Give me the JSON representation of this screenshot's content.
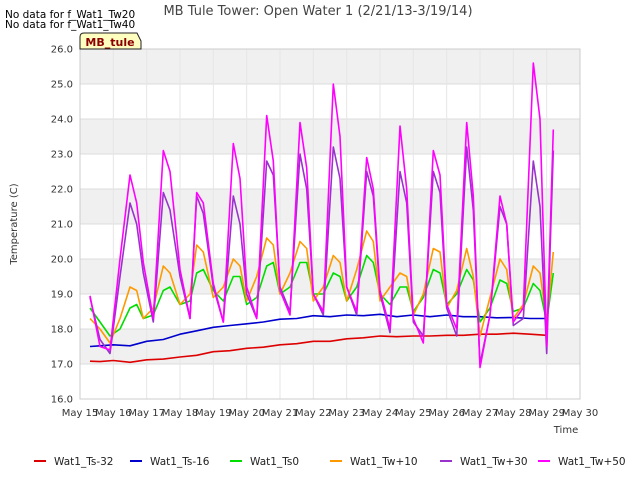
{
  "notes": [
    "No data for f_Wat1_Tw20",
    "No data for f_Wat1_Tw40"
  ],
  "badge": "MB_tule",
  "chart_data": {
    "type": "line",
    "title": "MB Tule Tower: Open Water 1 (2/21/13-3/19/14)",
    "xlabel": "Time",
    "ylabel": "Temperature (C)",
    "xlim": [
      15,
      30
    ],
    "ylim": [
      16.0,
      26.0
    ],
    "x_ticks": [
      15,
      16,
      17,
      18,
      19,
      20,
      21,
      22,
      23,
      24,
      25,
      26,
      27,
      28,
      29,
      30
    ],
    "x_tick_labels": [
      "May 15",
      "May 16",
      "May 17",
      "May 18",
      "May 19",
      "May 20",
      "May 21",
      "May 22",
      "May 23",
      "May 24",
      "May 25",
      "May 26",
      "May 27",
      "May 28",
      "May 29",
      "May 30"
    ],
    "y_ticks": [
      16.0,
      17.0,
      18.0,
      19.0,
      20.0,
      21.0,
      22.0,
      23.0,
      24.0,
      25.0,
      26.0
    ],
    "y_tick_labels": [
      "16.0",
      "17.0",
      "18.0",
      "19.0",
      "20.0",
      "21.0",
      "22.0",
      "23.0",
      "24.0",
      "25.0",
      "26.0"
    ],
    "grid": true,
    "legend_position": "bottom",
    "series": [
      {
        "name": "Wat1_Ts-32",
        "color": "#dd0000",
        "x": [
          15.3,
          15.6,
          16.0,
          16.5,
          17.0,
          17.5,
          18.0,
          18.5,
          19.0,
          19.5,
          20.0,
          20.5,
          21.0,
          21.5,
          22.0,
          22.5,
          23.0,
          23.5,
          24.0,
          24.5,
          25.0,
          25.5,
          26.0,
          26.5,
          27.0,
          27.5,
          28.0,
          28.5,
          29.0
        ],
        "y": [
          17.08,
          17.07,
          17.1,
          17.05,
          17.12,
          17.14,
          17.2,
          17.25,
          17.35,
          17.38,
          17.45,
          17.48,
          17.55,
          17.58,
          17.65,
          17.65,
          17.72,
          17.75,
          17.8,
          17.78,
          17.8,
          17.8,
          17.82,
          17.82,
          17.85,
          17.85,
          17.88,
          17.85,
          17.82
        ]
      },
      {
        "name": "Wat1_Ts-16",
        "color": "#0000cc",
        "x": [
          15.3,
          15.6,
          16.0,
          16.5,
          17.0,
          17.5,
          18.0,
          18.5,
          19.0,
          19.5,
          20.0,
          20.5,
          21.0,
          21.5,
          22.0,
          22.5,
          23.0,
          23.5,
          24.0,
          24.5,
          25.0,
          25.5,
          26.0,
          26.5,
          27.0,
          27.5,
          28.0,
          28.5,
          29.0
        ],
        "y": [
          17.5,
          17.52,
          17.55,
          17.52,
          17.65,
          17.7,
          17.85,
          17.95,
          18.05,
          18.1,
          18.15,
          18.2,
          18.28,
          18.3,
          18.38,
          18.35,
          18.4,
          18.38,
          18.42,
          18.35,
          18.4,
          18.35,
          18.4,
          18.35,
          18.35,
          18.32,
          18.33,
          18.3,
          18.3
        ]
      },
      {
        "name": "Wat1_Ts0",
        "color": "#00dd00",
        "x": [
          15.3,
          15.6,
          15.9,
          16.2,
          16.5,
          16.7,
          16.9,
          17.2,
          17.5,
          17.7,
          18.0,
          18.3,
          18.5,
          18.7,
          19.0,
          19.3,
          19.6,
          19.8,
          20.0,
          20.3,
          20.6,
          20.8,
          21.0,
          21.3,
          21.6,
          21.8,
          22.0,
          22.3,
          22.6,
          22.8,
          23.0,
          23.3,
          23.6,
          23.8,
          24.0,
          24.3,
          24.6,
          24.8,
          25.0,
          25.3,
          25.6,
          25.8,
          26.0,
          26.3,
          26.6,
          26.8,
          27.0,
          27.3,
          27.6,
          27.8,
          28.0,
          28.3,
          28.6,
          28.8,
          29.0,
          29.2
        ],
        "y": [
          18.6,
          18.2,
          17.8,
          18.0,
          18.6,
          18.7,
          18.3,
          18.4,
          19.1,
          19.2,
          18.7,
          18.8,
          19.6,
          19.7,
          19.1,
          18.8,
          19.5,
          19.5,
          18.7,
          18.9,
          19.8,
          19.9,
          19.0,
          19.2,
          19.9,
          19.9,
          19.0,
          19.0,
          19.6,
          19.5,
          18.8,
          19.2,
          20.1,
          19.9,
          19.0,
          18.7,
          19.2,
          19.2,
          18.5,
          18.9,
          19.7,
          19.6,
          18.7,
          19.0,
          19.7,
          19.4,
          18.2,
          18.6,
          19.4,
          19.3,
          18.5,
          18.6,
          19.3,
          19.1,
          18.2,
          19.6
        ]
      },
      {
        "name": "Wat1_Tw+10",
        "color": "#ff9900",
        "x": [
          15.3,
          15.6,
          15.9,
          16.2,
          16.5,
          16.7,
          16.9,
          17.2,
          17.5,
          17.7,
          18.0,
          18.3,
          18.5,
          18.7,
          19.0,
          19.3,
          19.6,
          19.8,
          20.0,
          20.3,
          20.6,
          20.8,
          21.0,
          21.3,
          21.6,
          21.8,
          22.0,
          22.3,
          22.6,
          22.8,
          23.0,
          23.3,
          23.6,
          23.8,
          24.0,
          24.3,
          24.6,
          24.8,
          25.0,
          25.3,
          25.6,
          25.8,
          26.0,
          26.3,
          26.6,
          26.8,
          27.0,
          27.3,
          27.6,
          27.8,
          28.0,
          28.3,
          28.6,
          28.8,
          29.0,
          29.2
        ],
        "y": [
          18.3,
          18.0,
          17.6,
          18.3,
          19.2,
          19.1,
          18.3,
          18.6,
          19.8,
          19.6,
          18.7,
          19.0,
          20.4,
          20.2,
          18.9,
          19.2,
          20.0,
          19.8,
          18.8,
          19.5,
          20.6,
          20.4,
          19.0,
          19.6,
          20.5,
          20.3,
          18.8,
          19.2,
          20.1,
          19.9,
          18.8,
          19.7,
          20.8,
          20.5,
          18.8,
          19.2,
          19.6,
          19.5,
          18.4,
          19.0,
          20.3,
          20.2,
          18.6,
          19.1,
          20.3,
          19.5,
          17.8,
          18.9,
          20.0,
          19.7,
          18.3,
          18.7,
          19.8,
          19.6,
          18.2,
          20.2
        ]
      },
      {
        "name": "Wat1_Tw+30",
        "color": "#9933cc",
        "x": [
          15.3,
          15.6,
          15.9,
          16.2,
          16.5,
          16.7,
          16.9,
          17.2,
          17.5,
          17.7,
          18.0,
          18.3,
          18.5,
          18.7,
          19.0,
          19.3,
          19.6,
          19.8,
          20.0,
          20.3,
          20.6,
          20.8,
          21.0,
          21.3,
          21.6,
          21.8,
          22.0,
          22.3,
          22.6,
          22.8,
          23.0,
          23.3,
          23.6,
          23.8,
          24.0,
          24.3,
          24.6,
          24.8,
          25.0,
          25.3,
          25.6,
          25.8,
          26.0,
          26.3,
          26.6,
          26.8,
          27.0,
          27.3,
          27.6,
          27.8,
          28.0,
          28.3,
          28.6,
          28.8,
          29.0,
          29.2
        ],
        "y": [
          18.9,
          17.7,
          17.3,
          19.5,
          21.6,
          21.0,
          19.6,
          18.2,
          21.9,
          21.4,
          19.5,
          18.3,
          21.8,
          21.3,
          19.2,
          18.2,
          21.8,
          21.0,
          19.0,
          18.3,
          22.8,
          22.4,
          19.2,
          18.5,
          23.0,
          22.0,
          19.0,
          18.4,
          23.2,
          22.3,
          19.2,
          18.4,
          22.5,
          21.8,
          19.0,
          17.9,
          22.5,
          21.6,
          18.2,
          17.8,
          22.5,
          21.9,
          18.6,
          17.8,
          23.2,
          21.4,
          17.0,
          18.4,
          21.5,
          21.0,
          18.1,
          18.3,
          22.8,
          21.5,
          17.3,
          23.1
        ]
      },
      {
        "name": "Wat1_Tw+50",
        "color": "#ff00ff",
        "x": [
          15.3,
          15.6,
          15.9,
          16.2,
          16.5,
          16.7,
          16.9,
          17.2,
          17.5,
          17.7,
          18.0,
          18.3,
          18.5,
          18.7,
          19.0,
          19.3,
          19.6,
          19.8,
          20.0,
          20.3,
          20.6,
          20.8,
          21.0,
          21.3,
          21.6,
          21.8,
          22.0,
          22.3,
          22.6,
          22.8,
          23.0,
          23.3,
          23.6,
          23.8,
          24.0,
          24.3,
          24.6,
          24.8,
          25.0,
          25.3,
          25.6,
          25.8,
          26.0,
          26.3,
          26.6,
          26.8,
          27.0,
          27.3,
          27.6,
          27.8,
          28.0,
          28.3,
          28.6,
          28.8,
          29.0,
          29.2
        ],
        "y": [
          18.95,
          17.5,
          17.4,
          20.0,
          22.4,
          21.6,
          19.9,
          18.3,
          23.1,
          22.5,
          19.7,
          18.3,
          21.9,
          21.6,
          19.3,
          18.2,
          23.3,
          22.3,
          19.2,
          18.3,
          24.1,
          22.8,
          19.1,
          18.4,
          23.9,
          22.6,
          19.0,
          18.5,
          25.0,
          23.5,
          19.2,
          18.5,
          22.9,
          22.0,
          19.1,
          18.0,
          23.8,
          22.0,
          18.3,
          17.6,
          23.1,
          22.4,
          18.7,
          18.0,
          23.9,
          21.8,
          16.9,
          18.4,
          21.8,
          21.0,
          18.2,
          18.6,
          25.6,
          24.0,
          17.5,
          23.7
        ]
      }
    ]
  }
}
